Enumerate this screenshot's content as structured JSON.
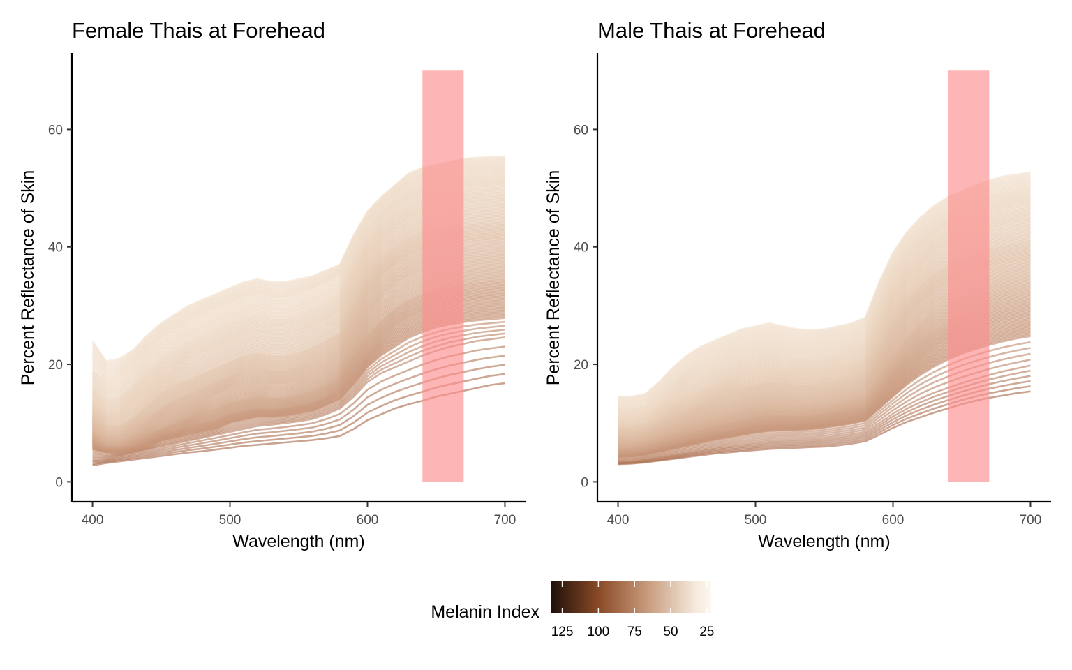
{
  "chart_data": [
    {
      "type": "line",
      "title": "Female Thais at Forehead",
      "xlabel": "Wavelength (nm)",
      "ylabel": "Percent Reflectance of Skin",
      "xlim": [
        385,
        715
      ],
      "ylim": [
        -3.4,
        73
      ],
      "xticks": [
        400,
        500,
        600,
        700
      ],
      "yticks": [
        0,
        20,
        40,
        60
      ],
      "grid": false,
      "x": [
        400,
        410,
        420,
        430,
        440,
        450,
        460,
        470,
        480,
        490,
        500,
        510,
        520,
        530,
        540,
        550,
        560,
        570,
        580,
        590,
        600,
        610,
        620,
        630,
        640,
        650,
        660,
        670,
        680,
        690,
        700
      ],
      "highlight_band": {
        "x": [
          640,
          670
        ],
        "y": [
          0,
          70
        ],
        "color": "#fc8d8d"
      },
      "series_profiles": [
        {
          "melanin_index": 22,
          "values": [
            24.0,
            20.5,
            21.0,
            22.5,
            25.0,
            27.0,
            28.5,
            30.0,
            31.0,
            32.0,
            33.0,
            34.0,
            34.5,
            34.0,
            34.0,
            34.5,
            35.0,
            36.0,
            37.0,
            42.0,
            46.0,
            48.5,
            50.5,
            52.5,
            53.5,
            54.0,
            54.5,
            55.0,
            55.2,
            55.3,
            55.4
          ]
        },
        {
          "melanin_index": 26,
          "values": [
            19.0,
            17.0,
            18.0,
            20.0,
            22.5,
            24.5,
            26.0,
            27.5,
            28.5,
            29.5,
            30.5,
            31.5,
            32.0,
            31.5,
            31.5,
            32.0,
            33.0,
            34.0,
            35.5,
            40.0,
            44.5,
            47.0,
            49.0,
            50.5,
            51.5,
            52.0,
            52.5,
            52.8,
            53.0,
            53.0,
            53.2
          ]
        },
        {
          "melanin_index": 30,
          "values": [
            16.0,
            14.0,
            14.5,
            16.5,
            19.0,
            21.0,
            22.5,
            24.0,
            25.0,
            26.0,
            27.0,
            28.0,
            28.5,
            28.0,
            28.0,
            28.5,
            29.5,
            30.5,
            32.0,
            37.0,
            41.5,
            44.5,
            46.5,
            48.0,
            49.0,
            49.5,
            50.0,
            50.3,
            50.5,
            50.6,
            50.8
          ]
        },
        {
          "melanin_index": 35,
          "values": [
            13.5,
            11.5,
            12.0,
            14.0,
            16.0,
            18.0,
            19.5,
            21.0,
            22.0,
            23.0,
            24.0,
            25.0,
            25.5,
            25.0,
            25.0,
            25.5,
            26.5,
            27.5,
            29.0,
            34.0,
            38.5,
            41.5,
            43.5,
            45.0,
            46.0,
            46.5,
            47.0,
            47.3,
            47.5,
            47.6,
            47.8
          ]
        },
        {
          "melanin_index": 40,
          "values": [
            11.5,
            9.5,
            9.5,
            11.0,
            13.0,
            15.0,
            16.5,
            17.5,
            18.5,
            19.5,
            20.5,
            21.5,
            22.0,
            21.5,
            21.5,
            22.0,
            23.0,
            24.0,
            25.5,
            30.5,
            35.0,
            38.0,
            40.0,
            41.5,
            42.5,
            43.0,
            43.5,
            43.8,
            44.0,
            44.2,
            44.4
          ]
        },
        {
          "melanin_index": 45,
          "values": [
            10.0,
            8.0,
            8.0,
            9.5,
            11.0,
            12.5,
            14.0,
            15.0,
            16.0,
            17.0,
            18.0,
            19.0,
            19.5,
            19.0,
            19.0,
            19.5,
            20.5,
            21.5,
            23.0,
            27.5,
            32.0,
            35.0,
            37.0,
            38.5,
            39.5,
            40.0,
            40.5,
            40.8,
            41.0,
            41.2,
            41.4
          ]
        },
        {
          "melanin_index": 50,
          "values": [
            8.5,
            7.0,
            7.0,
            8.0,
            9.5,
            11.0,
            12.0,
            13.0,
            14.0,
            15.0,
            16.0,
            16.5,
            17.0,
            16.8,
            16.8,
            17.2,
            18.0,
            19.0,
            20.5,
            24.5,
            28.5,
            31.5,
            33.5,
            35.0,
            36.0,
            36.5,
            37.0,
            37.3,
            37.5,
            37.7,
            37.9
          ]
        },
        {
          "melanin_index": 56,
          "values": [
            7.5,
            6.0,
            6.0,
            7.0,
            8.0,
            9.0,
            10.0,
            11.0,
            12.0,
            12.5,
            13.5,
            14.0,
            14.5,
            14.3,
            14.3,
            14.8,
            15.5,
            16.5,
            18.0,
            21.5,
            25.0,
            27.5,
            29.5,
            31.0,
            32.0,
            32.8,
            33.3,
            33.7,
            34.0,
            34.2,
            34.4
          ]
        },
        {
          "melanin_index": 62,
          "values": [
            6.5,
            5.5,
            5.5,
            6.0,
            7.0,
            8.0,
            8.5,
            9.5,
            10.0,
            10.5,
            11.5,
            12.0,
            12.5,
            12.3,
            12.5,
            13.0,
            13.5,
            14.5,
            16.0,
            19.0,
            22.0,
            24.5,
            26.5,
            28.0,
            29.0,
            29.8,
            30.3,
            30.7,
            31.0,
            31.2,
            31.4
          ]
        },
        {
          "melanin_index": 68,
          "values": [
            5.5,
            5.0,
            5.0,
            5.5,
            6.0,
            7.0,
            7.5,
            8.0,
            8.5,
            9.0,
            10.0,
            10.5,
            11.0,
            11.0,
            11.2,
            11.6,
            12.0,
            13.0,
            14.0,
            16.5,
            19.5,
            21.5,
            23.0,
            24.5,
            25.5,
            26.3,
            26.8,
            27.2,
            27.5,
            27.7,
            27.9
          ]
        },
        {
          "melanin_index": 78,
          "values": [
            4.0,
            4.0,
            4.5,
            5.0,
            5.5,
            6.0,
            6.5,
            7.0,
            7.5,
            8.0,
            8.5,
            9.0,
            9.5,
            9.7,
            10.0,
            10.3,
            10.7,
            11.5,
            12.5,
            14.5,
            17.0,
            18.5,
            19.5,
            20.5,
            21.5,
            22.3,
            23.0,
            23.5,
            24.0,
            24.3,
            24.6
          ]
        },
        {
          "melanin_index": 95,
          "values": [
            2.8,
            3.2,
            3.5,
            3.8,
            4.1,
            4.4,
            4.7,
            5.0,
            5.2,
            5.5,
            5.8,
            6.1,
            6.3,
            6.5,
            6.7,
            6.9,
            7.1,
            7.4,
            7.8,
            9.0,
            10.5,
            11.5,
            12.5,
            13.2,
            13.8,
            14.5,
            15.0,
            15.5,
            16.0,
            16.5,
            16.8
          ]
        }
      ]
    },
    {
      "type": "line",
      "title": "Male Thais at Forehead",
      "xlabel": "Wavelength (nm)",
      "ylabel": "Percent Reflectance of Skin",
      "xlim": [
        385,
        715
      ],
      "ylim": [
        -3.4,
        73
      ],
      "xticks": [
        400,
        500,
        600,
        700
      ],
      "yticks": [
        0,
        20,
        40,
        60
      ],
      "grid": false,
      "x": [
        400,
        410,
        420,
        430,
        440,
        450,
        460,
        470,
        480,
        490,
        500,
        510,
        520,
        530,
        540,
        550,
        560,
        570,
        580,
        590,
        600,
        610,
        620,
        630,
        640,
        650,
        660,
        670,
        680,
        690,
        700
      ],
      "highlight_band": {
        "x": [
          640,
          670
        ],
        "y": [
          0,
          70
        ],
        "color": "#fc8d8d"
      },
      "series_profiles": [
        {
          "melanin_index": 22,
          "values": [
            14.5,
            14.5,
            15.0,
            17.0,
            19.5,
            21.5,
            23.0,
            24.0,
            25.0,
            26.0,
            26.5,
            27.0,
            26.5,
            26.0,
            25.8,
            26.0,
            26.5,
            27.0,
            28.0,
            34.0,
            39.0,
            42.5,
            45.0,
            47.0,
            48.5,
            49.5,
            50.5,
            51.3,
            52.0,
            52.3,
            52.7
          ]
        },
        {
          "melanin_index": 26,
          "values": [
            12.5,
            12.5,
            13.0,
            15.0,
            17.0,
            19.0,
            20.5,
            21.5,
            22.5,
            23.5,
            24.0,
            24.5,
            24.0,
            23.5,
            23.5,
            23.8,
            24.2,
            24.8,
            26.0,
            31.5,
            36.5,
            40.0,
            42.5,
            44.5,
            46.0,
            47.0,
            48.0,
            48.7,
            49.2,
            49.6,
            49.9
          ]
        },
        {
          "melanin_index": 30,
          "values": [
            11.0,
            11.0,
            11.5,
            13.0,
            15.0,
            17.0,
            18.0,
            19.0,
            20.0,
            21.0,
            21.5,
            22.0,
            21.5,
            21.0,
            21.0,
            21.3,
            21.8,
            22.5,
            23.5,
            29.0,
            34.0,
            37.5,
            40.0,
            42.0,
            43.5,
            44.5,
            45.5,
            46.2,
            46.8,
            47.2,
            47.5
          ]
        },
        {
          "melanin_index": 35,
          "values": [
            9.5,
            9.5,
            10.0,
            11.5,
            13.0,
            14.5,
            15.5,
            16.5,
            17.5,
            18.5,
            19.0,
            19.5,
            19.0,
            18.8,
            18.8,
            19.0,
            19.5,
            20.0,
            21.0,
            26.0,
            31.0,
            34.5,
            37.0,
            39.0,
            40.5,
            41.5,
            42.5,
            43.2,
            43.8,
            44.2,
            44.5
          ]
        },
        {
          "melanin_index": 40,
          "values": [
            8.5,
            8.5,
            9.0,
            10.0,
            11.5,
            12.5,
            13.5,
            14.5,
            15.5,
            16.0,
            16.5,
            17.0,
            16.8,
            16.5,
            16.5,
            16.8,
            17.2,
            17.8,
            18.8,
            23.0,
            27.5,
            31.0,
            33.5,
            35.5,
            37.0,
            38.0,
            39.0,
            39.7,
            40.2,
            40.6,
            41.0
          ]
        },
        {
          "melanin_index": 45,
          "values": [
            7.5,
            7.5,
            8.0,
            9.0,
            10.0,
            11.0,
            12.0,
            12.8,
            13.5,
            14.0,
            14.5,
            15.0,
            14.8,
            14.6,
            14.6,
            14.9,
            15.3,
            15.8,
            16.8,
            20.5,
            24.5,
            28.0,
            30.5,
            32.5,
            34.0,
            35.0,
            36.0,
            36.7,
            37.2,
            37.6,
            38.0
          ]
        },
        {
          "melanin_index": 50,
          "values": [
            6.5,
            6.5,
            7.0,
            7.8,
            8.7,
            9.5,
            10.3,
            11.0,
            11.6,
            12.2,
            12.7,
            13.0,
            13.0,
            12.8,
            12.8,
            13.1,
            13.5,
            14.0,
            14.8,
            18.0,
            21.5,
            24.5,
            27.0,
            29.0,
            30.5,
            31.5,
            32.5,
            33.2,
            33.8,
            34.2,
            34.6
          ]
        },
        {
          "melanin_index": 56,
          "values": [
            5.5,
            5.6,
            6.0,
            6.7,
            7.4,
            8.1,
            8.8,
            9.4,
            10.0,
            10.5,
            11.0,
            11.3,
            11.3,
            11.2,
            11.3,
            11.6,
            12.0,
            12.5,
            13.2,
            16.0,
            19.0,
            21.8,
            24.0,
            25.8,
            27.2,
            28.3,
            29.2,
            30.0,
            30.6,
            31.0,
            31.4
          ]
        },
        {
          "melanin_index": 62,
          "values": [
            4.8,
            4.9,
            5.2,
            5.8,
            6.4,
            7.0,
            7.6,
            8.1,
            8.6,
            9.1,
            9.6,
            9.9,
            10.0,
            10.0,
            10.1,
            10.4,
            10.8,
            11.2,
            11.8,
            14.2,
            16.8,
            19.2,
            21.2,
            22.8,
            24.2,
            25.2,
            26.0,
            26.8,
            27.4,
            27.8,
            28.2
          ]
        },
        {
          "melanin_index": 68,
          "values": [
            4.2,
            4.3,
            4.6,
            5.1,
            5.6,
            6.1,
            6.6,
            7.1,
            7.5,
            7.9,
            8.3,
            8.6,
            8.7,
            8.8,
            8.9,
            9.2,
            9.5,
            9.9,
            10.4,
            12.4,
            14.5,
            16.5,
            18.2,
            19.6,
            20.8,
            21.8,
            22.6,
            23.3,
            23.9,
            24.4,
            24.8
          ]
        },
        {
          "melanin_index": 78,
          "values": [
            3.4,
            3.5,
            3.8,
            4.2,
            4.6,
            5.0,
            5.4,
            5.8,
            6.1,
            6.4,
            6.7,
            7.0,
            7.1,
            7.2,
            7.3,
            7.5,
            7.8,
            8.1,
            8.5,
            10.0,
            11.6,
            13.0,
            14.2,
            15.2,
            16.0,
            16.8,
            17.5,
            18.2,
            18.8,
            19.3,
            19.8
          ]
        },
        {
          "melanin_index": 95,
          "values": [
            3.0,
            3.1,
            3.3,
            3.6,
            3.9,
            4.2,
            4.5,
            4.8,
            5.0,
            5.2,
            5.4,
            5.6,
            5.7,
            5.8,
            5.9,
            6.0,
            6.2,
            6.5,
            6.9,
            8.0,
            9.2,
            10.2,
            11.0,
            11.8,
            12.5,
            13.2,
            13.8,
            14.3,
            14.7,
            15.1,
            15.4
          ]
        }
      ]
    }
  ],
  "legend": {
    "title": "Melanin Index",
    "position": "bottom",
    "ticks": [
      "125",
      "100",
      "75",
      "50",
      "25"
    ],
    "tick_values": [
      125,
      100,
      75,
      50,
      25
    ],
    "range": [
      133,
      22
    ],
    "gradient_colors": [
      "#1e1008",
      "#8a4a27",
      "#c79a7c",
      "#f5e9dc",
      "#fcf7f0"
    ]
  }
}
